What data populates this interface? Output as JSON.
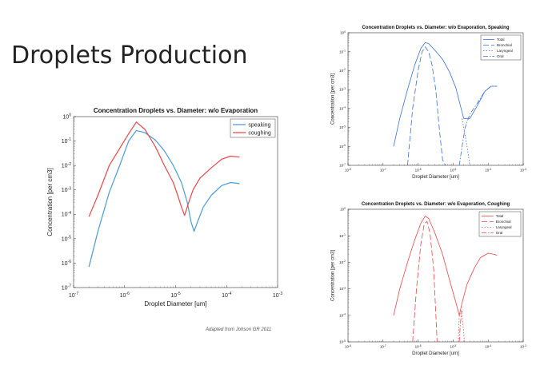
{
  "slide": {
    "title": "Droplets Production",
    "credit": "Adapted from Johson GR  2011"
  },
  "chart_data": [
    {
      "type": "line",
      "title": "Concentration Droplets vs. Diameter: w/o Evaporation",
      "xlabel": "Droplet Diameter [um]",
      "ylabel": "Concentration [per cm3]",
      "xscale": "log",
      "yscale": "log",
      "xlim": [
        1e-07,
        0.001
      ],
      "ylim": [
        1e-07,
        1
      ],
      "xticks": [
        "10^-7",
        "10^-6",
        "10^-5",
        "10^-4",
        "10^-3"
      ],
      "yticks": [
        "10^-7",
        "10^-6",
        "10^-5",
        "10^-4",
        "10^-3",
        "10^-2",
        "10^-1",
        "10^0"
      ],
      "legend_position": "top-right",
      "series": [
        {
          "name": "speaking",
          "color": "#4a9bd6",
          "dash": "",
          "x": [
            2e-07,
            3e-07,
            5e-07,
            8e-07,
            1.2e-06,
            1.7e-06,
            2.5e-06,
            4e-06,
            6e-06,
            9e-06,
            1.3e-05,
            1.7e-05,
            2e-05,
            2.3e-05,
            2.7e-05,
            3.5e-05,
            5e-05,
            8e-05,
            0.00012,
            0.00018
          ],
          "y": [
            7e-07,
            2e-05,
            0.0008,
            0.01,
            0.1,
            0.27,
            0.22,
            0.11,
            0.04,
            0.01,
            0.002,
            0.0003,
            5e-05,
            2e-05,
            5e-05,
            0.0002,
            0.0006,
            0.0015,
            0.002,
            0.0018
          ]
        },
        {
          "name": "coughing",
          "color": "#e8474a",
          "dash": "",
          "x": [
            2e-07,
            3e-07,
            5e-07,
            8e-07,
            1.2e-06,
            1.7e-06,
            2.5e-06,
            4e-06,
            6e-06,
            9e-06,
            1.1e-05,
            1.3e-05,
            1.5e-05,
            1.8e-05,
            2.2e-05,
            3e-05,
            5e-05,
            8e-05,
            0.00012,
            0.00018
          ],
          "y": [
            8e-05,
            0.0006,
            0.01,
            0.05,
            0.2,
            0.6,
            0.3,
            0.06,
            0.01,
            0.002,
            0.0006,
            0.0002,
            9e-05,
            0.0003,
            0.001,
            0.003,
            0.008,
            0.018,
            0.024,
            0.022
          ]
        }
      ]
    },
    {
      "type": "line",
      "title": "Concentration Droplets vs. Diameter: w/o Evaporation, Speaking",
      "xlabel": "Droplet Diameter [um]",
      "ylabel": "Concentration [per cm3]",
      "xscale": "log",
      "yscale": "log",
      "xlim": [
        1e-08,
        0.001
      ],
      "ylim": [
        1e-07,
        1
      ],
      "xticks": [
        "10^-8",
        "10^-7",
        "10^-6",
        "10^-5",
        "10^-4",
        "10^-3"
      ],
      "yticks": [
        "10^-7",
        "10^-6",
        "10^-5",
        "10^-4",
        "10^-3",
        "10^-2",
        "10^-1",
        "10^0"
      ],
      "legend_position": "top-right",
      "series": [
        {
          "name": "Total",
          "color": "#3a6fd8",
          "dash": "",
          "x": [
            2e-07,
            3e-07,
            5e-07,
            8e-07,
            1.2e-06,
            1.6e-06,
            2e-06,
            3e-06,
            5e-06,
            8e-06,
            1.2e-05,
            1.6e-05,
            2e-05,
            3e-05,
            5e-05,
            8e-05,
            0.00012,
            0.00018
          ],
          "y": [
            1e-06,
            3e-05,
            0.001,
            0.02,
            0.15,
            0.3,
            0.27,
            0.12,
            0.04,
            0.008,
            0.0012,
            0.00015,
            3e-05,
            3e-05,
            0.00015,
            0.0008,
            0.0015,
            0.0015
          ]
        },
        {
          "name": "Bronchial",
          "color": "#3a6fd8",
          "dash": "7,3",
          "x": [
            5e-07,
            7e-07,
            1e-06,
            1.3e-06,
            1.6e-06,
            2e-06,
            2.5e-06,
            3.2e-06,
            4e-06,
            5e-06,
            6e-06
          ],
          "y": [
            1e-07,
            0.0001,
            0.01,
            0.1,
            0.18,
            0.1,
            0.02,
            0.001,
            1e-05,
            2e-07,
            1e-07
          ]
        },
        {
          "name": "Laryngeal",
          "color": "#3a6fd8",
          "dash": "1.5,2",
          "x": [
            1.8e-05,
            2e-05,
            2.5e-05,
            3e-05,
            3.5e-05
          ],
          "y": [
            3e-05,
            1e-05,
            1e-06,
            1e-07,
            1e-07
          ]
        },
        {
          "name": "Oral",
          "color": "#3a6fd8",
          "dash": "6,2,1.5,2",
          "x": [
            1.5e-05,
            1.8e-05,
            2.2e-05,
            3e-05,
            5e-05,
            8e-05,
            0.00012,
            0.00018
          ],
          "y": [
            1e-07,
            1e-06,
            1e-05,
            5e-05,
            0.0002,
            0.0008,
            0.0015,
            0.0015
          ]
        }
      ]
    },
    {
      "type": "line",
      "title": "Concentration Droplets vs. Diameter: w/o Evaporation, Coughing",
      "xlabel": "Droplet Diameter [um]",
      "ylabel": "Concentration [per cm3]",
      "xscale": "log",
      "yscale": "log",
      "xlim": [
        1e-08,
        0.001
      ],
      "ylim": [
        1e-05,
        1
      ],
      "xticks": [
        "10^-8",
        "10^-7",
        "10^-6",
        "10^-5",
        "10^-4",
        "10^-3"
      ],
      "yticks": [
        "10^-5",
        "10^-4",
        "10^-3",
        "10^-2",
        "10^-1",
        "10^0"
      ],
      "legend_position": "top-right",
      "series": [
        {
          "name": "Total",
          "color": "#e8474a",
          "dash": "",
          "x": [
            2e-07,
            3e-07,
            5e-07,
            8e-07,
            1.2e-06,
            1.6e-06,
            2e-06,
            3e-06,
            5e-06,
            8e-06,
            1.2e-05,
            1.5e-05,
            1.8e-05,
            2.5e-05,
            4e-05,
            6e-05,
            0.0001,
            0.00015,
            0.00018
          ],
          "y": [
            0.0001,
            0.001,
            0.01,
            0.07,
            0.3,
            0.55,
            0.45,
            0.13,
            0.02,
            0.002,
            0.0003,
            0.0001,
            0.0003,
            0.0015,
            0.006,
            0.015,
            0.022,
            0.02,
            0.018
          ]
        },
        {
          "name": "Bronchial",
          "color": "#e8474a",
          "dash": "7,3",
          "x": [
            7e-07,
            9e-07,
            1.2e-06,
            1.5e-06,
            1.8e-06,
            2.2e-06,
            2.8e-06,
            3.5e-06
          ],
          "y": [
            1e-05,
            0.001,
            0.05,
            0.28,
            0.35,
            0.12,
            0.005,
            1e-05
          ]
        },
        {
          "name": "Laryngeal",
          "color": "#e8474a",
          "dash": "1.5,2",
          "x": [
            1.4e-05,
            1.5e-05,
            1.7e-05,
            1.9e-05,
            2.1e-05
          ],
          "y": [
            1e-05,
            0.0001,
            0.00015,
            5e-05,
            1e-05
          ]
        },
        {
          "name": "Oral",
          "color": "#e8474a",
          "dash": "6,2,1.5,2",
          "x": [
            1.5e-05,
            1.6e-05,
            1.7e-05,
            1.8e-05
          ],
          "y": [
            1e-05,
            4e-05,
            0.0001,
            0.00015
          ]
        }
      ]
    }
  ]
}
